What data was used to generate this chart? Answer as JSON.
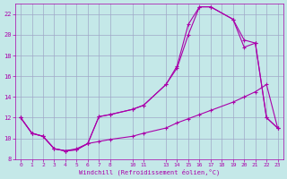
{
  "xlabel": "Windchill (Refroidissement éolien,°C)",
  "bg_color": "#c4e8e8",
  "grid_color": "#a0a8c8",
  "line_color": "#aa00aa",
  "xlim": [
    -0.5,
    23.5
  ],
  "ylim": [
    8,
    23
  ],
  "xticks": [
    0,
    1,
    2,
    3,
    4,
    5,
    6,
    7,
    8,
    10,
    11,
    13,
    14,
    15,
    16,
    17,
    18,
    19,
    20,
    21,
    22,
    23
  ],
  "yticks": [
    8,
    10,
    12,
    14,
    16,
    18,
    20,
    22
  ],
  "line1_x": [
    0,
    1,
    2,
    3,
    4,
    5,
    6,
    7,
    8,
    10,
    11,
    13,
    14,
    15,
    16,
    17,
    19,
    20,
    21,
    22,
    23
  ],
  "line1_y": [
    12,
    10.5,
    10.2,
    9.0,
    8.8,
    8.9,
    9.5,
    12.1,
    12.3,
    12.8,
    13.2,
    15.2,
    17.0,
    21.0,
    22.7,
    22.7,
    21.5,
    19.5,
    19.2,
    12.0,
    11.0
  ],
  "line2_x": [
    0,
    1,
    2,
    3,
    4,
    5,
    6,
    7,
    8,
    10,
    11,
    13,
    14,
    15,
    16,
    17,
    19,
    20,
    21,
    22,
    23
  ],
  "line2_y": [
    12,
    10.5,
    10.2,
    9.0,
    8.8,
    8.9,
    9.5,
    12.1,
    12.3,
    12.8,
    13.2,
    15.2,
    16.8,
    20.0,
    22.7,
    22.7,
    21.5,
    18.8,
    19.2,
    12.0,
    11.0
  ],
  "line3_x": [
    0,
    1,
    2,
    3,
    4,
    5,
    6,
    7,
    8,
    10,
    11,
    13,
    14,
    15,
    16,
    17,
    19,
    20,
    21,
    22,
    23
  ],
  "line3_y": [
    12,
    10.5,
    10.2,
    9.0,
    8.8,
    9.0,
    9.5,
    9.7,
    9.9,
    10.2,
    10.5,
    11.0,
    11.5,
    11.9,
    12.3,
    12.7,
    13.5,
    14.0,
    14.5,
    15.2,
    11.0
  ]
}
